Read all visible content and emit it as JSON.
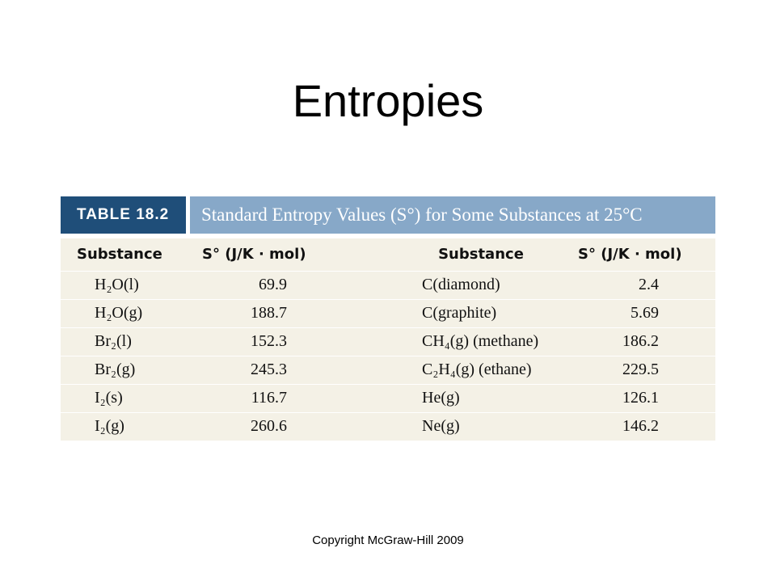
{
  "title": "Entropies",
  "table": {
    "label": "TABLE 18.2",
    "caption": "Standard Entropy Values (S°) for Some Substances at 25°C",
    "headers": [
      "Substance",
      "S° (J/K · mol)",
      "Substance",
      "S° (J/K · mol)"
    ],
    "rows": [
      [
        "H₂O(l)",
        69.9,
        "C(diamond)",
        2.4
      ],
      [
        "H₂O(g)",
        188.7,
        "C(graphite)",
        5.69
      ],
      [
        "Br₂(l)",
        152.3,
        "CH₄(g) (methane)",
        186.2
      ],
      [
        "Br₂(g)",
        245.3,
        "C₂H₄(g) (ethane)",
        229.5
      ],
      [
        "I₂(s)",
        116.7,
        "He(g)",
        126.1
      ],
      [
        "I₂(g)",
        260.6,
        "Ne(g)",
        146.2
      ]
    ]
  },
  "footer": "Copyright McGraw-Hill 2009"
}
